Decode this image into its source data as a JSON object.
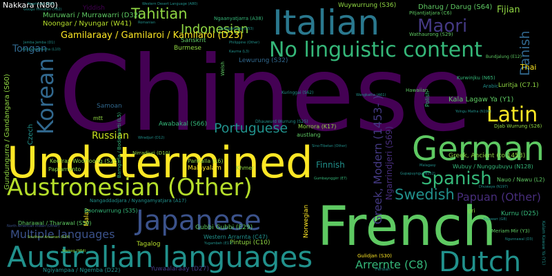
{
  "words": [
    {
      "text": "Chinese",
      "color": "#440154"
    },
    {
      "text": "Undetermined",
      "color": "#fde725"
    },
    {
      "text": "French",
      "color": "#5ec962"
    },
    {
      "text": "Italian",
      "color": "#2a788e"
    },
    {
      "text": "Australian languages",
      "color": "#21918c"
    },
    {
      "text": "German",
      "color": "#5ec962"
    },
    {
      "text": "Japanese",
      "color": "#3b528b"
    },
    {
      "text": "Austronesian (Other)",
      "color": "#b5de2b"
    },
    {
      "text": "Dutch",
      "color": "#21918c"
    },
    {
      "text": "Korean",
      "color": "#31688e"
    },
    {
      "text": "No linguistic content",
      "color": "#35b779"
    },
    {
      "text": "Latin",
      "color": "#fde725"
    },
    {
      "text": "Spanish",
      "color": "#35b779"
    },
    {
      "text": "Maori",
      "color": "#443983"
    },
    {
      "text": "Swedish",
      "color": "#21918c"
    },
    {
      "text": "Tahitian",
      "color": "#90d743"
    },
    {
      "text": "Indonesian",
      "color": "#90d743"
    },
    {
      "text": "Portuguese",
      "color": "#21918c"
    },
    {
      "text": "Danish",
      "color": "#31688e"
    },
    {
      "text": "Greek, Modern (1453- )",
      "color": "#443983"
    },
    {
      "text": "Papuan (Other)",
      "color": "#472d7b"
    },
    {
      "text": "Multiple languages",
      "color": "#3b528b"
    },
    {
      "text": "Arrernte (C8)",
      "color": "#35b779"
    },
    {
      "text": "Russian",
      "color": "#c8e020"
    },
    {
      "text": "Tongan",
      "color": "#31688e"
    },
    {
      "text": "Gamilaraay / Gamilaroi / Kamilaroi (D23)",
      "color": "#fde725"
    },
    {
      "text": "Ngarrindjeri (S69)",
      "color": "#472d7b"
    },
    {
      "text": "Fijian",
      "color": "#90d743"
    },
    {
      "text": "Finnish",
      "color": "#21918c"
    },
    {
      "text": "Nakkara (N80)",
      "color": "#ffffff"
    },
    {
      "text": "Muruwari / Murrawarri (D32)",
      "color": "#5ec962"
    },
    {
      "text": "Noongar / Nyungar (W41)",
      "color": "#b5de2b"
    },
    {
      "text": "Gundungurra / Gandangara (S60)",
      "color": "#90d743"
    },
    {
      "text": "Kala Lagaw Ya (Y1)",
      "color": "#5ec962"
    },
    {
      "text": "Dharug / Darug (S64)",
      "color": "#5ec962"
    },
    {
      "text": "Wuywurrung (S36)",
      "color": "#90d743"
    },
    {
      "text": "Thai",
      "color": "#fde725"
    },
    {
      "text": "Luritja (C7.1)",
      "color": "#90d743"
    },
    {
      "text": "Greek, Ancient (to 1453)",
      "color": "#90d743"
    },
    {
      "text": "Kurnu (D25)",
      "color": "#35b779"
    },
    {
      "text": "Sanskrit",
      "color": "#5ec962"
    },
    {
      "text": "Burmese",
      "color": "#90d743"
    },
    {
      "text": "Samoan",
      "color": "#31688e"
    },
    {
      "text": "Lewurung (S32)",
      "color": "#31688e"
    },
    {
      "text": "Awabakal (S66)",
      "color": "#35b779"
    },
    {
      "text": "Morrora (K17)",
      "color": "#90d743"
    },
    {
      "text": "Czech",
      "color": "#21918c"
    },
    {
      "text": "Malayalam",
      "color": "#fde725"
    },
    {
      "text": "Malay",
      "color": "#fde725"
    },
    {
      "text": "Tagalog",
      "color": "#b5de2b"
    },
    {
      "text": "Yuwaalaraay (D27)",
      "color": "#443983"
    },
    {
      "text": "Norwegian",
      "color": "#fde725"
    },
    {
      "text": "Pintupi (C10)",
      "color": "#90d743"
    },
    {
      "text": "Gubbi Gubbi (E29)",
      "color": "#5ec962"
    },
    {
      "text": "Western Arrarnta (C47)",
      "color": "#21918c"
    },
    {
      "text": "Pankalla (L6)",
      "color": "#90d743"
    },
    {
      "text": "Khmer",
      "color": "#90d743"
    },
    {
      "text": "Dharawal / Tharawal (S59)",
      "color": "#5ec962"
    },
    {
      "text": "Boonwurrung (S35)",
      "color": "#35b779"
    },
    {
      "text": "Keerray Woorroong (S25)",
      "color": "#90d743"
    },
    {
      "text": "Papiamento",
      "color": "#90d743"
    },
    {
      "text": "Ngiyampaa / Ngemba (D22)",
      "color": "#21918c"
    },
    {
      "text": "Gulidjan (S30)",
      "color": "#fde725"
    },
    {
      "text": "Wubuy / Nunggubuyu (N128)",
      "color": "#35b779"
    },
    {
      "text": "Nauo / Nawu (L2)",
      "color": "#5ec962"
    },
    {
      "text": "Meriam Mir (Y3)",
      "color": "#5ec962"
    },
    {
      "text": "Djab Wurrung (S26)",
      "color": "#90d743"
    },
    {
      "text": "austlang",
      "color": "#5ec962"
    },
    {
      "text": "mtt",
      "color": "#90d743"
    },
    {
      "text": "gri",
      "color": "#90d743"
    },
    {
      "text": "Polish",
      "color": "#35b779"
    },
    {
      "text": "Welsh",
      "color": "#5ec962"
    },
    {
      "text": "Hawaiian",
      "color": "#5ec962"
    },
    {
      "text": "Arabic",
      "color": "#21918c"
    },
    {
      "text": "Persian",
      "color": "#21918c"
    },
    {
      "text": "Yiddish",
      "color": "#440154"
    },
    {
      "text": "Pitjantjatjara (C6)",
      "color": "#5ec962"
    },
    {
      "text": "Wathaurong (S29)",
      "color": "#5ec962"
    },
    {
      "text": "Kurwinjku (N65)",
      "color": "#35b779"
    },
    {
      "text": "Ngaanyatjarra (A38)",
      "color": "#35b779"
    },
    {
      "text": "Kuringgai (S62)",
      "color": "#21918c"
    },
    {
      "text": "Dhauwurd Wurrung (S25)",
      "color": "#21918c"
    },
    {
      "text": "Bundjalung (E12)",
      "color": "#5ec962"
    },
    {
      "text": "Barngarla / Bodarwarti (L5)",
      "color": "#35b779"
    },
    {
      "text": "Nirradjuri (D10)",
      "color": "#90d743"
    },
    {
      "text": "Nangaddadjara / Nyangamyatjara (A17)",
      "color": "#21918c"
    },
    {
      "text": "Southern Arawnan (A24)",
      "color": "#90d743"
    },
    {
      "text": "Wamog (N64)",
      "color": "#90d743"
    },
    {
      "text": "Philippine (Other)",
      "color": "#21918c"
    },
    {
      "text": "Kalam Kawaw Ya (Y1)",
      "color": "#21918c"
    },
    {
      "text": "Gumbaynggirr (E7)",
      "color": "#35b779"
    },
    {
      "text": "Sino-Tibetan (Other)",
      "color": "#21918c"
    },
    {
      "text": "Gupapuyngu (N132)",
      "color": "#21918c"
    },
    {
      "text": "Dhuwaya (N197)",
      "color": "#21918c"
    },
    {
      "text": "Malagasy",
      "color": "#21918c"
    },
    {
      "text": "Ngunnawal (D3)",
      "color": "#21918c"
    },
    {
      "text": "Wiradjuri (D12)",
      "color": "#21918c"
    },
    {
      "text": "Yugambeh (E17)",
      "color": "#21918c"
    },
    {
      "text": "North American Indian (Other)",
      "color": "#3b528b"
    },
    {
      "text": "Nyangumarta (A53)",
      "color": "#21918c"
    },
    {
      "text": "Western Desert Language (A80)",
      "color": "#21918c"
    },
    {
      "text": "Romanian",
      "color": "#21918c"
    },
    {
      "text": "Adnyamathanha (L10)",
      "color": "#21918c"
    },
    {
      "text": "Jemba Jemba (D1)",
      "color": "#21918c"
    },
    {
      "text": "Kaurna (L3)",
      "color": "#21918c"
    },
    {
      "text": "Guugu Yimidhirr (Y82)",
      "color": "#21918c"
    },
    {
      "text": "Wangkatha (A61)",
      "color": "#21918c"
    },
    {
      "text": "Yolngu Matha (N198)",
      "color": "#21918c"
    },
    {
      "text": "Alyawarr (G8)",
      "color": "#21918c"
    },
    {
      "text": "Ngarinyin (K26)",
      "color": "#21918c"
    }
  ]
}
